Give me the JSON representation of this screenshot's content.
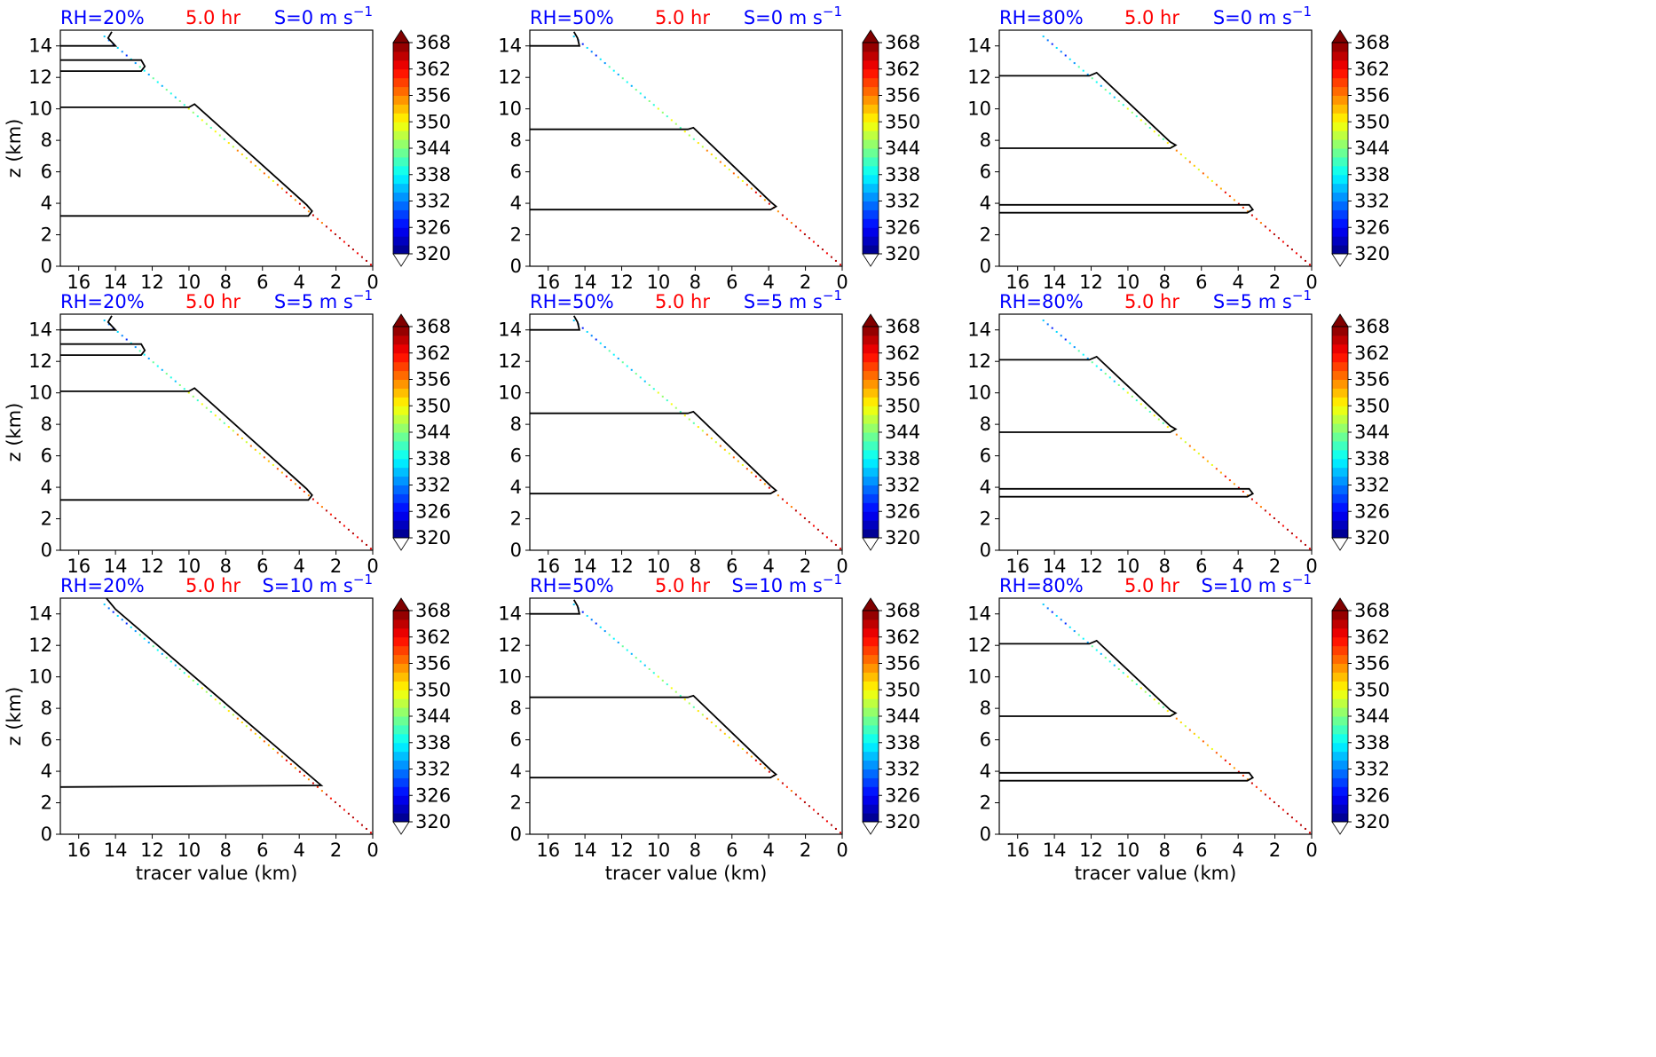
{
  "figure": {
    "time_label": "5.0 hr",
    "ylabel": "z (km)",
    "xlabel": "tracer value (km)",
    "colors": {
      "rh_text": "#0000ff",
      "time_text": "#ff0000",
      "shear_text": "#0000ff",
      "contour": "#000000"
    }
  },
  "colorbar": {
    "levels": [
      320,
      326,
      332,
      338,
      344,
      350,
      356,
      362,
      368
    ],
    "tick_labels": [
      "320",
      "326",
      "332",
      "338",
      "344",
      "350",
      "356",
      "362",
      "368"
    ],
    "colormap": "jet",
    "extend": "both"
  },
  "chart_data": [
    {
      "type": "contour",
      "rh_label": "RH=20%",
      "shear_label": "S=0 m s",
      "shear_sup": "−1",
      "time_label": "5.0 hr",
      "xlim": [
        17,
        0
      ],
      "ylim": [
        0,
        15
      ],
      "xticks": [
        16,
        14,
        12,
        10,
        8,
        6,
        4,
        2,
        0
      ],
      "yticks": [
        0,
        2,
        4,
        6,
        8,
        10,
        12,
        14
      ],
      "contour_lines": [
        [
          [
            17,
            14.0
          ],
          [
            14.0,
            14.0
          ],
          [
            14.4,
            14.5
          ],
          [
            14.2,
            14.9
          ]
        ],
        [
          [
            17,
            13.1
          ],
          [
            12.6,
            13.1
          ],
          [
            12.4,
            12.7
          ],
          [
            12.6,
            12.4
          ],
          [
            17,
            12.4
          ]
        ],
        [
          [
            17,
            10.1
          ],
          [
            10.0,
            10.1
          ],
          [
            9.7,
            10.3
          ],
          [
            3.6,
            3.9
          ],
          [
            3.3,
            3.5
          ],
          [
            3.5,
            3.2
          ],
          [
            17,
            3.2
          ]
        ]
      ]
    },
    {
      "type": "contour",
      "rh_label": "RH=50%",
      "shear_label": "S=0 m s",
      "shear_sup": "−1",
      "time_label": "5.0 hr",
      "xlim": [
        17,
        0
      ],
      "ylim": [
        0,
        15
      ],
      "xticks": [
        16,
        14,
        12,
        10,
        8,
        6,
        4,
        2,
        0
      ],
      "yticks": [
        0,
        2,
        4,
        6,
        8,
        10,
        12,
        14
      ],
      "contour_lines": [
        [
          [
            17,
            14.0
          ],
          [
            14.3,
            14.0
          ],
          [
            14.4,
            14.5
          ],
          [
            14.6,
            14.9
          ]
        ],
        [
          [
            17,
            8.7
          ],
          [
            8.4,
            8.7
          ],
          [
            8.1,
            8.8
          ],
          [
            3.9,
            4.1
          ],
          [
            3.6,
            3.8
          ],
          [
            3.9,
            3.6
          ],
          [
            17,
            3.6
          ]
        ]
      ]
    },
    {
      "type": "contour",
      "rh_label": "RH=80%",
      "shear_label": "S=0 m s",
      "shear_sup": "−1",
      "time_label": "5.0 hr",
      "xlim": [
        17,
        0
      ],
      "ylim": [
        0,
        15
      ],
      "xticks": [
        16,
        14,
        12,
        10,
        8,
        6,
        4,
        2,
        0
      ],
      "yticks": [
        0,
        2,
        4,
        6,
        8,
        10,
        12,
        14
      ],
      "contour_lines": [
        [
          [
            17,
            12.1
          ],
          [
            12.1,
            12.1
          ],
          [
            11.7,
            12.3
          ],
          [
            7.7,
            7.9
          ],
          [
            7.4,
            7.7
          ],
          [
            7.7,
            7.5
          ],
          [
            17,
            7.5
          ]
        ],
        [
          [
            17,
            3.9
          ],
          [
            3.4,
            3.9
          ],
          [
            3.2,
            3.6
          ],
          [
            3.5,
            3.4
          ],
          [
            17,
            3.4
          ]
        ]
      ]
    },
    {
      "type": "contour",
      "rh_label": "RH=20%",
      "shear_label": "S=5 m s",
      "shear_sup": "−1",
      "time_label": "5.0 hr",
      "xlim": [
        17,
        0
      ],
      "ylim": [
        0,
        15
      ],
      "xticks": [
        16,
        14,
        12,
        10,
        8,
        6,
        4,
        2,
        0
      ],
      "yticks": [
        0,
        2,
        4,
        6,
        8,
        10,
        12,
        14
      ],
      "contour_lines": [
        [
          [
            17,
            14.0
          ],
          [
            14.0,
            14.0
          ],
          [
            14.4,
            14.5
          ],
          [
            14.2,
            14.9
          ]
        ],
        [
          [
            17,
            13.1
          ],
          [
            12.6,
            13.1
          ],
          [
            12.4,
            12.7
          ],
          [
            12.6,
            12.4
          ],
          [
            17,
            12.4
          ]
        ],
        [
          [
            17,
            10.1
          ],
          [
            10.0,
            10.1
          ],
          [
            9.7,
            10.3
          ],
          [
            3.6,
            3.9
          ],
          [
            3.3,
            3.5
          ],
          [
            3.5,
            3.2
          ],
          [
            17,
            3.2
          ]
        ]
      ]
    },
    {
      "type": "contour",
      "rh_label": "RH=50%",
      "shear_label": "S=5 m s",
      "shear_sup": "−1",
      "time_label": "5.0 hr",
      "xlim": [
        17,
        0
      ],
      "ylim": [
        0,
        15
      ],
      "xticks": [
        16,
        14,
        12,
        10,
        8,
        6,
        4,
        2,
        0
      ],
      "yticks": [
        0,
        2,
        4,
        6,
        8,
        10,
        12,
        14
      ],
      "contour_lines": [
        [
          [
            17,
            14.0
          ],
          [
            14.3,
            14.0
          ],
          [
            14.4,
            14.5
          ],
          [
            14.6,
            14.9
          ]
        ],
        [
          [
            17,
            8.7
          ],
          [
            8.4,
            8.7
          ],
          [
            8.1,
            8.8
          ],
          [
            3.9,
            4.1
          ],
          [
            3.6,
            3.8
          ],
          [
            3.9,
            3.6
          ],
          [
            17,
            3.6
          ]
        ]
      ]
    },
    {
      "type": "contour",
      "rh_label": "RH=80%",
      "shear_label": "S=5 m s",
      "shear_sup": "−1",
      "time_label": "5.0 hr",
      "xlim": [
        17,
        0
      ],
      "ylim": [
        0,
        15
      ],
      "xticks": [
        16,
        14,
        12,
        10,
        8,
        6,
        4,
        2,
        0
      ],
      "yticks": [
        0,
        2,
        4,
        6,
        8,
        10,
        12,
        14
      ],
      "contour_lines": [
        [
          [
            17,
            12.1
          ],
          [
            12.1,
            12.1
          ],
          [
            11.7,
            12.3
          ],
          [
            7.7,
            7.9
          ],
          [
            7.4,
            7.7
          ],
          [
            7.7,
            7.5
          ],
          [
            17,
            7.5
          ]
        ],
        [
          [
            17,
            3.9
          ],
          [
            3.4,
            3.9
          ],
          [
            3.2,
            3.6
          ],
          [
            3.5,
            3.4
          ],
          [
            17,
            3.4
          ]
        ]
      ]
    },
    {
      "type": "contour",
      "rh_label": "RH=20%",
      "shear_label": "S=10 m s",
      "shear_sup": "−1",
      "time_label": "5.0 hr",
      "xlim": [
        17,
        0
      ],
      "ylim": [
        0,
        15
      ],
      "xticks": [
        16,
        14,
        12,
        10,
        8,
        6,
        4,
        2,
        0
      ],
      "yticks": [
        0,
        2,
        4,
        6,
        8,
        10,
        12,
        14
      ],
      "contour_lines": [
        [
          [
            14.5,
            15.0
          ],
          [
            14.0,
            14.3
          ],
          [
            3.0,
            3.3
          ],
          [
            2.8,
            3.1
          ],
          [
            17,
            3.0
          ]
        ]
      ]
    },
    {
      "type": "contour",
      "rh_label": "RH=50%",
      "shear_label": "S=10 m s",
      "shear_sup": "−1",
      "time_label": "5.0 hr",
      "xlim": [
        17,
        0
      ],
      "ylim": [
        0,
        15
      ],
      "xticks": [
        16,
        14,
        12,
        10,
        8,
        6,
        4,
        2,
        0
      ],
      "yticks": [
        0,
        2,
        4,
        6,
        8,
        10,
        12,
        14
      ],
      "contour_lines": [
        [
          [
            17,
            14.0
          ],
          [
            14.3,
            14.0
          ],
          [
            14.4,
            14.5
          ],
          [
            14.6,
            14.9
          ]
        ],
        [
          [
            17,
            8.7
          ],
          [
            8.4,
            8.7
          ],
          [
            8.1,
            8.8
          ],
          [
            3.9,
            4.1
          ],
          [
            3.6,
            3.8
          ],
          [
            3.9,
            3.6
          ],
          [
            17,
            3.6
          ]
        ]
      ]
    },
    {
      "type": "contour",
      "rh_label": "RH=80%",
      "shear_label": "S=10 m s",
      "shear_sup": "−1",
      "time_label": "5.0 hr",
      "xlim": [
        17,
        0
      ],
      "ylim": [
        0,
        15
      ],
      "xticks": [
        16,
        14,
        12,
        10,
        8,
        6,
        4,
        2,
        0
      ],
      "yticks": [
        0,
        2,
        4,
        6,
        8,
        10,
        12,
        14
      ],
      "contour_lines": [
        [
          [
            17,
            12.1
          ],
          [
            12.1,
            12.1
          ],
          [
            11.7,
            12.3
          ],
          [
            7.7,
            7.9
          ],
          [
            7.4,
            7.7
          ],
          [
            7.7,
            7.5
          ],
          [
            17,
            7.5
          ]
        ],
        [
          [
            17,
            3.9
          ],
          [
            3.4,
            3.9
          ],
          [
            3.2,
            3.6
          ],
          [
            3.5,
            3.4
          ],
          [
            17,
            3.4
          ]
        ]
      ]
    }
  ]
}
